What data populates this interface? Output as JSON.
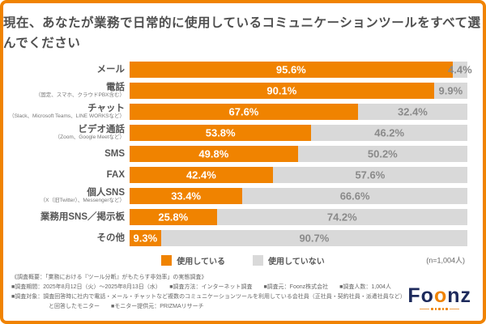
{
  "colors": {
    "accent_orange": "#F08300",
    "bar_gray": "#D9D9D9",
    "logo_navy": "#1D2A5C"
  },
  "title": {
    "line1": "現在、あなたが業務で日常的に使用している",
    "line2": "コミュニケーションツールをすべて選んでください"
  },
  "chart_data": {
    "type": "bar",
    "orientation": "horizontal",
    "stacked": true,
    "title": "現在、あなたが業務で日常的に使用しているコミュニケーションツールをすべて選んでください",
    "categories": [
      "メール",
      "電話",
      "チャット",
      "ビデオ通話",
      "SMS",
      "FAX",
      "個人SNS",
      "業務用SNS／掲示板",
      "その他"
    ],
    "series": [
      {
        "name": "使用している",
        "color": "#F08300",
        "values": [
          95.6,
          90.1,
          67.6,
          53.8,
          49.8,
          42.4,
          33.4,
          25.8,
          9.3
        ]
      },
      {
        "name": "使用していない",
        "color": "#D9D9D9",
        "values": [
          4.4,
          9.9,
          32.4,
          46.2,
          50.2,
          57.6,
          66.6,
          74.2,
          90.7
        ]
      }
    ],
    "xlim": [
      0,
      100
    ],
    "unit": "%",
    "legend_position": "bottom",
    "sample_note": "(n=1,004人)"
  },
  "rows": [
    {
      "label": "メール",
      "sublabel": "",
      "used": 95.6,
      "not_used": 4.4,
      "used_label": "95.6%",
      "not_used_label": "4.4%"
    },
    {
      "label": "電話",
      "sublabel": "（固定、スマホ、クラウドPBX含む）",
      "used": 90.1,
      "not_used": 9.9,
      "used_label": "90.1%",
      "not_used_label": "9.9%"
    },
    {
      "label": "チャット",
      "sublabel": "（Slack、Microsoft Teams、LINE WORKSなど）",
      "used": 67.6,
      "not_used": 32.4,
      "used_label": "67.6%",
      "not_used_label": "32.4%"
    },
    {
      "label": "ビデオ通話",
      "sublabel": "（Zoom、Google Meetなど）",
      "used": 53.8,
      "not_used": 46.2,
      "used_label": "53.8%",
      "not_used_label": "46.2%"
    },
    {
      "label": "SMS",
      "sublabel": "",
      "used": 49.8,
      "not_used": 50.2,
      "used_label": "49.8%",
      "not_used_label": "50.2%"
    },
    {
      "label": "FAX",
      "sublabel": "",
      "used": 42.4,
      "not_used": 57.6,
      "used_label": "42.4%",
      "not_used_label": "57.6%"
    },
    {
      "label": "個人SNS",
      "sublabel": "（X（旧Twitter）、Messengerなど）",
      "used": 33.4,
      "not_used": 66.6,
      "used_label": "33.4%",
      "not_used_label": "66.6%"
    },
    {
      "label": "業務用SNS／掲示板",
      "sublabel": "",
      "used": 25.8,
      "not_used": 74.2,
      "used_label": "25.8%",
      "not_used_label": "74.2%"
    },
    {
      "label": "その他",
      "sublabel": "",
      "used": 9.3,
      "not_used": 90.7,
      "used_label": "9.3%",
      "not_used_label": "90.7%"
    }
  ],
  "legend": {
    "used_label": "使用している",
    "unused_label": "使用していない",
    "sample": "(n=1,004人)"
  },
  "footer": {
    "line1": "《調査概要：「業務における『ツール分断』がもたらす非効率」の実態調査》",
    "line2": "■調査期間：2025年8月12日（火）～2025年8月13日（水）　　■調査方法：インターネット調査　　■調査元：Foonz株式会社　　■調査人数：1,004人",
    "line3": "■調査対象：調査回答時に社内で電話・メール・チャットなど複数のコミュニケーションツールを利用している会社員（正社員・契約社員・派遣社員など）",
    "line4": "と回答したモニター　　■モニター提供元：PRIZMAリサーチ"
  },
  "logo": {
    "prefix": "Fo",
    "accent": "o",
    "suffix": "nz"
  }
}
